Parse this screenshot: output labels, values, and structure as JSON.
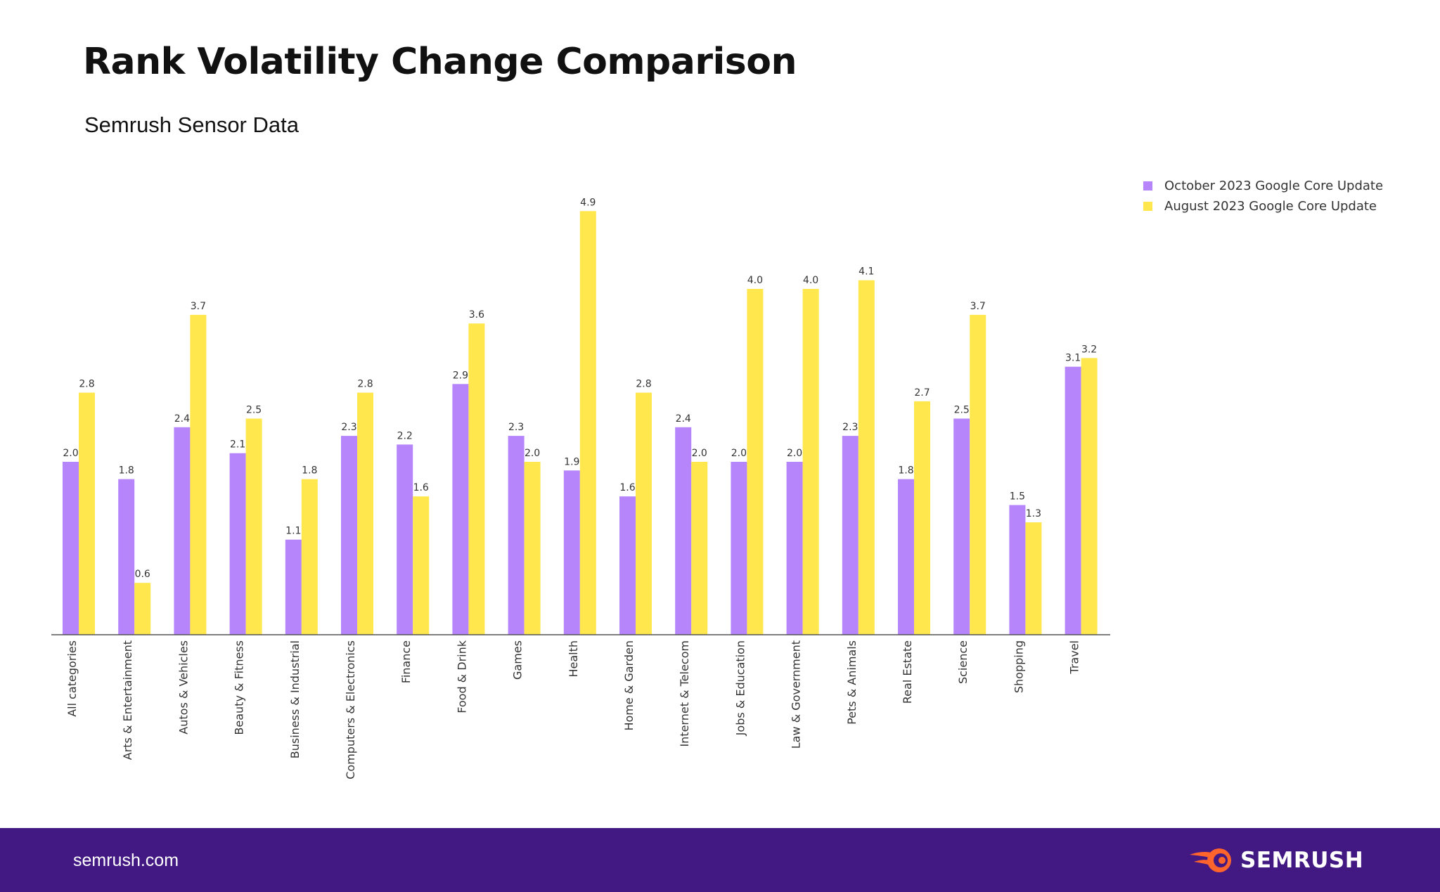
{
  "header": {
    "title": "Rank Volatility Change Comparison",
    "subtitle": "Semrush Sensor Data"
  },
  "footer": {
    "site": "semrush.com",
    "logo_text": "SEMRUSH"
  },
  "colors": {
    "october": "#b685fb",
    "august": "#ffe74d",
    "footer_bg": "#421983",
    "logo_accent": "#ff642d"
  },
  "chart_data": {
    "type": "bar",
    "title": "Rank Volatility Change Comparison",
    "subtitle": "Semrush Sensor Data",
    "xlabel": "",
    "ylabel": "",
    "ylim": [
      0,
      5.2
    ],
    "grid": false,
    "legend": "top-right",
    "categories": [
      "All categories",
      "Arts & Entertainment",
      "Autos & Vehicles",
      "Beauty & Fitness",
      "Business & Industrial",
      "Computers & Electronics",
      "Finance",
      "Food & Drink",
      "Games",
      "Health",
      "Home & Garden",
      "Internet & Telecom",
      "Jobs & Education",
      "Law & Government",
      "Pets & Animals",
      "Real Estate",
      "Science",
      "Shopping",
      "Travel"
    ],
    "series": [
      {
        "name": "October 2023 Google Core Update",
        "color": "#b685fb",
        "values": [
          2.0,
          1.8,
          2.4,
          2.1,
          1.1,
          2.3,
          2.2,
          2.9,
          2.3,
          1.9,
          1.6,
          2.4,
          2.0,
          2.0,
          2.3,
          1.8,
          2.5,
          1.5,
          3.1
        ]
      },
      {
        "name": "August 2023 Google Core Update",
        "color": "#ffe74d",
        "values": [
          2.8,
          0.6,
          3.7,
          2.5,
          1.8,
          2.8,
          1.6,
          3.6,
          2.0,
          4.9,
          2.8,
          2.0,
          4.0,
          4.0,
          4.1,
          2.7,
          3.7,
          1.3,
          3.2
        ]
      }
    ]
  }
}
